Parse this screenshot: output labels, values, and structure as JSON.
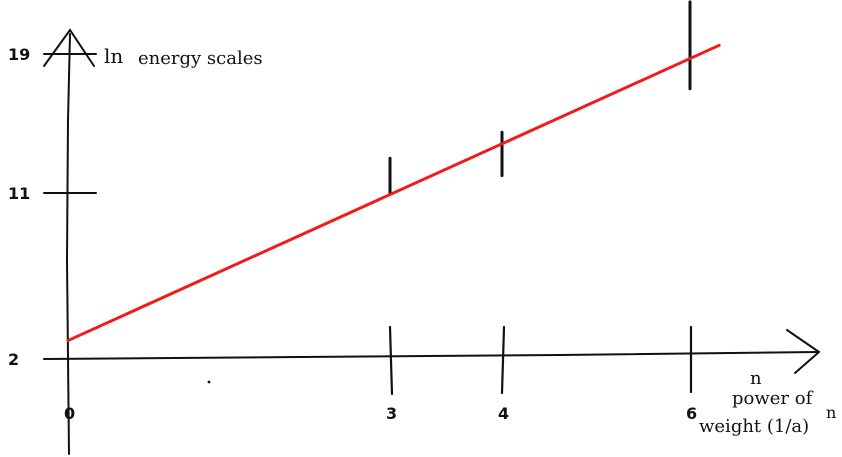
{
  "chart_data": {
    "type": "line",
    "x_ticks": [
      "0",
      "3",
      "4",
      "6"
    ],
    "y_ticks": [
      "2",
      "11",
      "19"
    ],
    "xlabel": {
      "top_n": "n",
      "line1": "power of",
      "line2_main": "weight (1/a)",
      "line2_sup": "n"
    },
    "ylabel": {
      "ln": "ln",
      "text": "energy scales"
    },
    "xlim": [
      0,
      6.9
    ],
    "ylim": [
      2,
      19
    ],
    "series": [
      {
        "color": "#ee1c1c",
        "x": [
          0,
          6.3
        ],
        "y": [
          3,
          19.5
        ]
      }
    ],
    "error_marks": [
      {
        "x": 3,
        "y_low": 11,
        "y_high": 13
      },
      {
        "x": 4,
        "y_low": 12,
        "y_high": 14.5
      },
      {
        "x": 6,
        "y_low": 17,
        "y_high": 22
      }
    ],
    "grid": false,
    "legend": "none"
  }
}
